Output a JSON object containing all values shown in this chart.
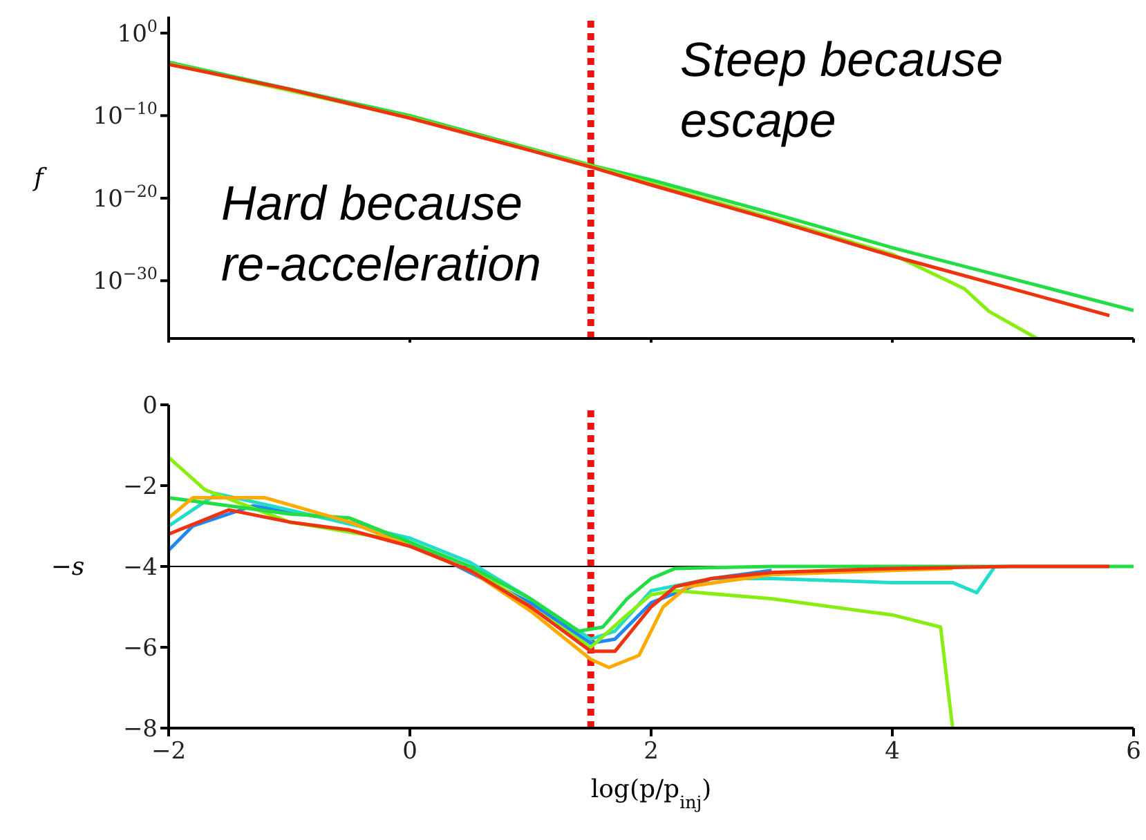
{
  "chart_data": [
    {
      "type": "line",
      "ylabel": "f",
      "log": "y",
      "xlim": [
        -2,
        6
      ],
      "xticks": [
        -2,
        0,
        2,
        4,
        6
      ],
      "ylim": [
        1e-37,
        100.0
      ],
      "yticks": [
        {
          "value": 1,
          "label": "10$^{0}$"
        },
        {
          "value": 1e-10,
          "label": "10$^{−10}$"
        },
        {
          "value": 1e-20,
          "label": "10$^{−20}$"
        },
        {
          "value": 1e-30,
          "label": "10$^{−30}$"
        }
      ],
      "tick_labels": "y",
      "grid": false,
      "legend": false,
      "marker": "none",
      "line_style": "solid",
      "series": [
        {
          "color": "#22dd44",
          "x": [
            -2,
            0,
            1.5,
            2,
            3,
            4,
            5,
            6
          ],
          "values": [
            0.0003,
            1e-10,
            1e-16,
            1.6e-18,
            1.6e-22,
            1e-26,
            1.6e-30,
            2.5e-34
          ]
        },
        {
          "color": "#88ee11",
          "x": [
            -2,
            0,
            1.5,
            2,
            3,
            4,
            4.6,
            4.8,
            5.2
          ],
          "values": [
            0.0002,
            6e-11,
            8e-17,
            6e-19,
            4e-23,
            1.6e-27,
            1e-31,
            2e-34,
            1e-37
          ]
        },
        {
          "color": "#ee3311",
          "x": [
            -2,
            -1,
            0,
            1,
            1.5,
            2,
            3,
            4,
            5,
            5.8
          ],
          "values": [
            0.00016,
            1.6e-07,
            5e-11,
            6e-15,
            6e-17,
            4e-19,
            2.5e-23,
            1e-27,
            1e-31,
            6e-35
          ]
        }
      ],
      "ref_lines": [
        {
          "axis": "x",
          "value": 1.5,
          "color": "#ee1111",
          "line_style": "dotted"
        }
      ],
      "annotations": [
        "Steep because escape",
        "Hard because re-acceleration"
      ]
    },
    {
      "type": "line",
      "xlabel": "log(p/p$_{inj}$)",
      "ylabel": "−s",
      "xlim": [
        -2,
        6
      ],
      "xticks": [
        {
          "value": -2,
          "label": "−2"
        },
        0,
        2,
        4,
        6
      ],
      "ylim": [
        -8,
        0
      ],
      "yticks": [
        {
          "value": -8,
          "label": "−8"
        },
        {
          "value": -6,
          "label": "−6"
        },
        {
          "value": -4,
          "label": "−4"
        },
        {
          "value": -2,
          "label": "−2"
        },
        0
      ],
      "grid": false,
      "legend": false,
      "marker": "none",
      "line_style": "solid",
      "series": [
        {
          "color": "#2288ee",
          "x": [
            -2,
            -1.8,
            -1.3,
            -0.5,
            0,
            1,
            1.5,
            1.7,
            2,
            2.5,
            3
          ],
          "values": [
            -3.6,
            -3.0,
            -2.5,
            -2.9,
            -3.4,
            -4.9,
            -5.9,
            -5.8,
            -4.9,
            -4.3,
            -4.1
          ]
        },
        {
          "color": "#22ddcc",
          "x": [
            -2,
            -1.6,
            -1,
            0,
            0.5,
            1,
            1.5,
            1.7,
            2,
            2.5,
            3,
            4,
            4.5,
            4.7,
            4.85
          ],
          "values": [
            -3.0,
            -2.2,
            -2.6,
            -3.3,
            -3.9,
            -4.8,
            -5.8,
            -5.6,
            -4.6,
            -4.3,
            -4.3,
            -4.4,
            -4.4,
            -4.65,
            -4.0
          ]
        },
        {
          "color": "#88ee11",
          "x": [
            -2,
            -1.7,
            -1,
            0,
            0.5,
            1,
            1.5,
            1.8,
            2,
            2.2,
            3,
            4,
            4.4,
            4.5
          ],
          "values": [
            -1.3,
            -2.1,
            -2.9,
            -3.4,
            -4.0,
            -5.0,
            -6.0,
            -5.2,
            -4.7,
            -4.6,
            -4.8,
            -5.2,
            -5.5,
            -8
          ]
        },
        {
          "color": "#22dd44",
          "x": [
            -2,
            -1.5,
            -1,
            -0.5,
            0,
            0.5,
            1,
            1.4,
            1.6,
            1.8,
            2,
            2.2,
            3,
            6
          ],
          "values": [
            -2.3,
            -2.5,
            -2.7,
            -2.8,
            -3.4,
            -4.0,
            -4.8,
            -5.6,
            -5.5,
            -4.8,
            -4.3,
            -4.05,
            -4.0,
            -4.0
          ]
        },
        {
          "color": "#ffaa00",
          "x": [
            -2,
            -1.8,
            -1.2,
            -0.5,
            0,
            0.5,
            1,
            1.5,
            1.65,
            1.9,
            2.1,
            2.3,
            3,
            4,
            4.5
          ],
          "values": [
            -2.8,
            -2.3,
            -2.3,
            -2.9,
            -3.5,
            -4.1,
            -5.1,
            -6.3,
            -6.5,
            -6.2,
            -5.0,
            -4.5,
            -4.2,
            -4.1,
            -4.05
          ]
        },
        {
          "color": "#ee3311",
          "x": [
            -2,
            -1.5,
            -1,
            -0.5,
            0,
            0.5,
            1,
            1.5,
            1.7,
            2,
            2.2,
            2.5,
            3,
            4,
            5,
            5.8
          ],
          "values": [
            -3.2,
            -2.6,
            -2.9,
            -3.1,
            -3.5,
            -4.1,
            -5.0,
            -6.1,
            -6.1,
            -5.0,
            -4.5,
            -4.3,
            -4.15,
            -4.05,
            -4.0,
            -4.0
          ]
        }
      ],
      "ref_lines": [
        {
          "axis": "x",
          "value": 1.5,
          "color": "#ee1111",
          "line_style": "dotted"
        },
        {
          "axis": "y",
          "value": -4,
          "color": "#000000",
          "line_style": "solid"
        }
      ]
    }
  ]
}
